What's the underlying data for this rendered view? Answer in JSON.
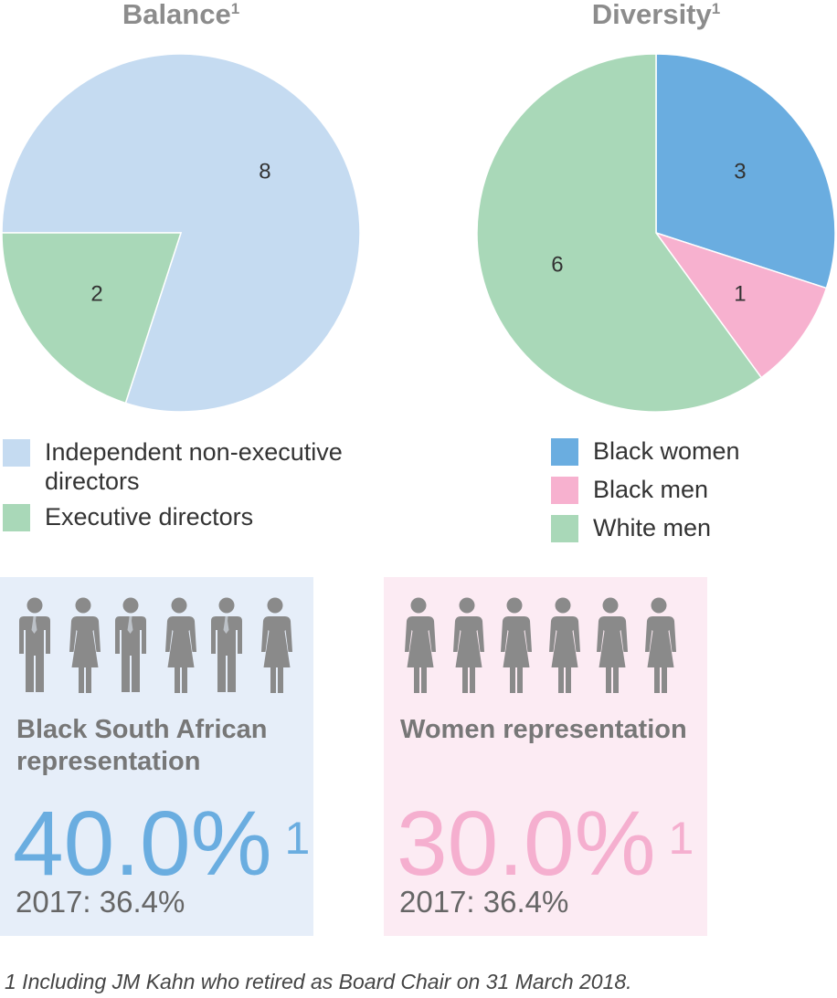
{
  "chart_data": [
    {
      "type": "pie",
      "title": "Balance",
      "title_sup": "1",
      "slices": [
        {
          "label": "Independent non-executive directors",
          "value": 8,
          "color": "#c5dbf1"
        },
        {
          "label": "Executive directors",
          "value": 2,
          "color": "#a9d8b8"
        }
      ],
      "legend": "below"
    },
    {
      "type": "pie",
      "title": "Diversity",
      "title_sup": "1",
      "slices": [
        {
          "label": "Black women",
          "value": 3,
          "color": "#6aade0"
        },
        {
          "label": "Black men",
          "value": 1,
          "color": "#f7b1cf"
        },
        {
          "label": "White men",
          "value": 6,
          "color": "#a9d8b8"
        }
      ],
      "legend": "below"
    }
  ],
  "panels": {
    "black": {
      "heading": "Black South African representation",
      "value": "40.0%",
      "value_sup": "1",
      "prior": "2017: 36.4%",
      "background": "#e6eef9",
      "value_color": "#6aade0",
      "icons": [
        "man-icon",
        "woman-icon",
        "man-icon",
        "woman-icon",
        "man-icon",
        "woman-icon"
      ]
    },
    "women": {
      "heading": "Women representation",
      "value": "30.0%",
      "value_sup": "1",
      "prior": "2017: 36.4%",
      "background": "#fcebf3",
      "value_color": "#f5afcf",
      "icons": [
        "woman-icon",
        "woman-icon",
        "woman-icon",
        "woman-icon",
        "woman-icon",
        "woman-icon"
      ]
    }
  },
  "footnote": "1   Including JM Kahn who retired as Board Chair on 31 March 2018."
}
